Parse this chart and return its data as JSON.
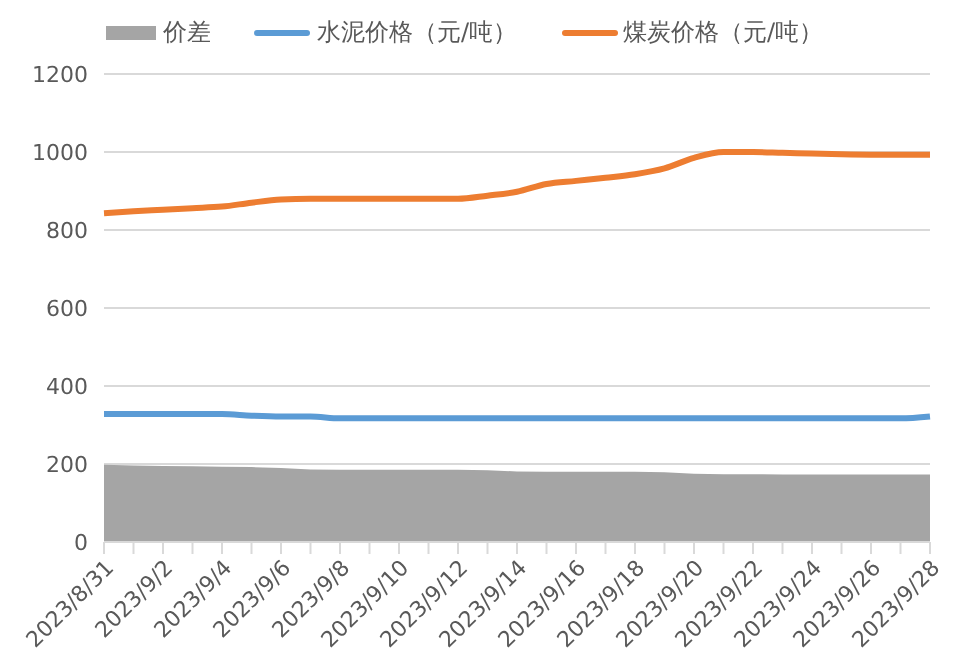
{
  "chart_data": {
    "type": "line",
    "categories": [
      "2023/8/31",
      null,
      "2023/9/2",
      null,
      "2023/9/4",
      null,
      "2023/9/6",
      null,
      "2023/9/8",
      null,
      "2023/9/10",
      null,
      "2023/9/12",
      null,
      "2023/9/14",
      null,
      "2023/9/16",
      null,
      "2023/9/18",
      null,
      "2023/9/20",
      null,
      "2023/9/22",
      null,
      "2023/9/24",
      null,
      "2023/9/26",
      null,
      "2023/9/28"
    ],
    "series": [
      {
        "name": "价差",
        "type": "area",
        "color": "#a5a5a5",
        "values": [
          198,
          196,
          195,
          194,
          193,
          192,
          190,
          186,
          185,
          185,
          185,
          185,
          185,
          184,
          181,
          180,
          180,
          180,
          180,
          179,
          175,
          174,
          174,
          173,
          173,
          173,
          173,
          173,
          173
        ]
      },
      {
        "name": "水泥价格（元/吨）",
        "color": "#5b9bd5",
        "values": [
          328,
          328,
          328,
          328,
          328,
          324,
          322,
          322,
          317,
          317,
          317,
          317,
          317,
          317,
          317,
          317,
          317,
          317,
          317,
          317,
          317,
          317,
          317,
          317,
          317,
          317,
          317,
          317,
          322
        ]
      },
      {
        "name": "煤炭价格（元/吨）",
        "color": "#ed7d31",
        "values": [
          843,
          848,
          852,
          856,
          860,
          870,
          878,
          880,
          880,
          880,
          880,
          880,
          880,
          888,
          898,
          918,
          926,
          934,
          943,
          958,
          985,
          1000,
          1000,
          998,
          996,
          994,
          993,
          993,
          993
        ]
      }
    ],
    "ylim": [
      0,
      1200
    ],
    "yticks": [
      0,
      200,
      400,
      600,
      800,
      1000,
      1200
    ],
    "grid": "y",
    "legend": "top",
    "marker": "none"
  }
}
